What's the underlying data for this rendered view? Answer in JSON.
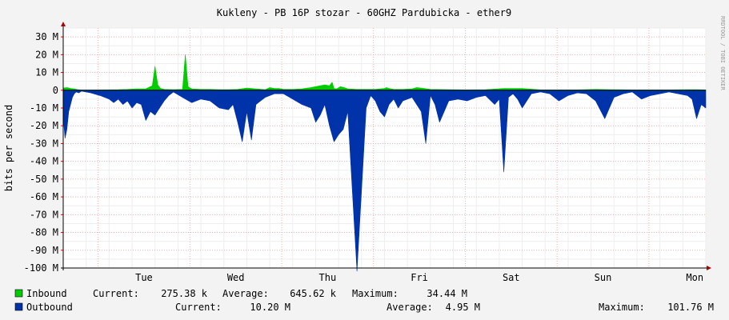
{
  "chart_data": {
    "type": "area",
    "title": "Kukleny - PB 16P stozar - 60GHZ Pardubicka - ether9",
    "ylabel": "bits per second",
    "watermark": "RRDTOOL / TOBI OETIKER",
    "ylim": [
      -100,
      35
    ],
    "yunit": "M",
    "yticks": [
      {
        "v": 30,
        "label": "30 M"
      },
      {
        "v": 20,
        "label": "20 M"
      },
      {
        "v": 10,
        "label": "10 M"
      },
      {
        "v": 0,
        "label": "0"
      },
      {
        "v": -10,
        "label": "-10 M"
      },
      {
        "v": -20,
        "label": "-20 M"
      },
      {
        "v": -30,
        "label": "-30 M"
      },
      {
        "v": -40,
        "label": "-40 M"
      },
      {
        "v": -50,
        "label": "-50 M"
      },
      {
        "v": -60,
        "label": "-60 M"
      },
      {
        "v": -70,
        "label": "-70 M"
      },
      {
        "v": -80,
        "label": "-80 M"
      },
      {
        "v": -90,
        "label": "-90 M"
      },
      {
        "v": -100,
        "label": "-100 M"
      }
    ],
    "xlim": [
      0,
      7
    ],
    "day_boundaries": [
      0.38,
      1.38,
      2.38,
      3.38,
      4.38,
      5.38,
      6.38
    ],
    "xticks": [
      {
        "x": 0.88,
        "label": "Tue"
      },
      {
        "x": 1.88,
        "label": "Wed"
      },
      {
        "x": 2.88,
        "label": "Thu"
      },
      {
        "x": 3.88,
        "label": "Fri"
      },
      {
        "x": 4.88,
        "label": "Sat"
      },
      {
        "x": 5.88,
        "label": "Sun"
      },
      {
        "x": 6.88,
        "label": "Mon"
      }
    ],
    "grid": true,
    "series": [
      {
        "name": "Inbound",
        "color": "#00cc00",
        "x": [
          0,
          0.04,
          0.08,
          0.12,
          0.16,
          0.2,
          0.3,
          0.45,
          0.6,
          0.7,
          0.8,
          0.9,
          0.97,
          1.0,
          1.03,
          1.06,
          1.1,
          1.2,
          1.3,
          1.33,
          1.36,
          1.4,
          1.5,
          1.6,
          1.7,
          1.8,
          1.9,
          2.0,
          2.1,
          2.2,
          2.25,
          2.3,
          2.35,
          2.4,
          2.5,
          2.6,
          2.7,
          2.85,
          2.9,
          2.93,
          2.95,
          2.98,
          3.02,
          3.06,
          3.1,
          3.2,
          3.4,
          3.5,
          3.52,
          3.55,
          3.6,
          3.7,
          3.8,
          3.85,
          3.9,
          4.0,
          4.2,
          4.4,
          4.6,
          4.8,
          5.0,
          5.2,
          5.4,
          5.6,
          5.8,
          6.0,
          6.2,
          6.4,
          6.6,
          6.8,
          6.9,
          7.0
        ],
        "values": [
          1.2,
          1.5,
          1.0,
          0.8,
          0.3,
          0.1,
          0.1,
          0.2,
          0.3,
          0.5,
          0.8,
          0.8,
          2.5,
          13.5,
          3.0,
          1.0,
          0.5,
          0.3,
          0.5,
          20.0,
          2.0,
          0.8,
          0.5,
          0.5,
          0.3,
          0.3,
          0.5,
          1.2,
          0.8,
          0.3,
          1.5,
          1.0,
          1.0,
          0.5,
          0.5,
          0.8,
          1.5,
          3.0,
          2.5,
          4.5,
          1.0,
          0.8,
          2.0,
          1.5,
          0.8,
          0.5,
          0.5,
          1.0,
          1.5,
          1.0,
          0.5,
          0.5,
          0.8,
          1.5,
          1.2,
          0.5,
          0.3,
          0.2,
          0.3,
          1.0,
          1.0,
          0.2,
          0.2,
          0.2,
          0.5,
          0.3,
          0.2,
          0.2,
          0.2,
          0.3,
          0.3,
          0.2
        ]
      },
      {
        "name": "Outbound",
        "color": "#0033aa",
        "x": [
          0,
          0.02,
          0.04,
          0.06,
          0.08,
          0.1,
          0.12,
          0.14,
          0.17,
          0.2,
          0.3,
          0.4,
          0.5,
          0.55,
          0.6,
          0.65,
          0.7,
          0.75,
          0.8,
          0.85,
          0.9,
          0.95,
          1.0,
          1.05,
          1.1,
          1.15,
          1.2,
          1.3,
          1.4,
          1.5,
          1.6,
          1.7,
          1.8,
          1.85,
          1.9,
          1.95,
          2.0,
          2.05,
          2.1,
          2.15,
          2.2,
          2.3,
          2.4,
          2.5,
          2.6,
          2.7,
          2.75,
          2.8,
          2.85,
          2.9,
          2.95,
          3.0,
          3.05,
          3.1,
          3.2,
          3.3,
          3.35,
          3.4,
          3.45,
          3.5,
          3.55,
          3.6,
          3.65,
          3.7,
          3.8,
          3.9,
          3.95,
          4.0,
          4.05,
          4.1,
          4.15,
          4.2,
          4.3,
          4.4,
          4.5,
          4.6,
          4.7,
          4.75,
          4.8,
          4.85,
          4.9,
          4.95,
          5.0,
          5.1,
          5.2,
          5.3,
          5.4,
          5.5,
          5.6,
          5.7,
          5.8,
          5.9,
          6.0,
          6.1,
          6.2,
          6.3,
          6.4,
          6.5,
          6.6,
          6.7,
          6.8,
          6.85,
          6.9,
          6.95,
          7.0
        ],
        "values": [
          -15.0,
          -27.0,
          -22.0,
          -12.0,
          -8.0,
          -4.0,
          -2.0,
          -1.0,
          -1.5,
          -0.5,
          -1.5,
          -3.0,
          -5.0,
          -7.0,
          -5.0,
          -8.0,
          -6.0,
          -10.0,
          -7.0,
          -8.0,
          -17.0,
          -12.0,
          -14.0,
          -10.0,
          -6.0,
          -3.0,
          -1.0,
          -4.0,
          -7.0,
          -5.0,
          -6.0,
          -10.0,
          -11.0,
          -8.0,
          -18.0,
          -29.0,
          -12.0,
          -28.0,
          -8.0,
          -6.0,
          -4.0,
          -2.0,
          -2.0,
          -5.0,
          -8.0,
          -10.0,
          -18.0,
          -14.0,
          -8.0,
          -20.0,
          -29.0,
          -25.0,
          -22.0,
          -12.0,
          -101.8,
          -10.0,
          -3.0,
          -6.0,
          -12.0,
          -15.0,
          -8.0,
          -5.0,
          -10.0,
          -6.0,
          -4.0,
          -12.0,
          -30.0,
          -3.0,
          -8.0,
          -18.0,
          -12.0,
          -6.0,
          -5.0,
          -6.0,
          -4.0,
          -3.0,
          -8.0,
          -5.0,
          -46.0,
          -4.0,
          -2.0,
          -5.0,
          -10.0,
          -2.0,
          -1.0,
          -2.0,
          -6.0,
          -3.0,
          -1.5,
          -2.0,
          -6.0,
          -16.0,
          -4.0,
          -2.0,
          -1.0,
          -5.0,
          -3.0,
          -2.0,
          -1.0,
          -2.0,
          -3.0,
          -5.0,
          -16.0,
          -8.0,
          -10.0
        ]
      }
    ]
  },
  "legend": {
    "inbound": {
      "name": "Inbound",
      "current_label": "Current:",
      "current": "275.38 k",
      "average_label": "Average:",
      "average": "645.62 k",
      "maximum_label": "Maximum:",
      "maximum": "34.44 M"
    },
    "outbound": {
      "name": "Outbound",
      "current_label": "Current:",
      "current": "10.20 M",
      "average_label": "Average:",
      "average": "4.95 M",
      "maximum_label": "Maximum:",
      "maximum": "101.76 M"
    }
  }
}
